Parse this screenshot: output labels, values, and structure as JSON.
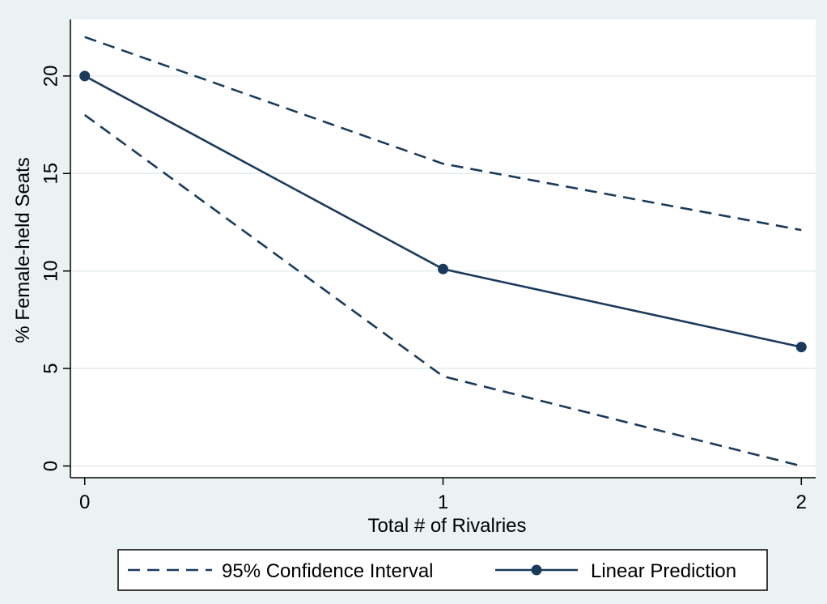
{
  "chart_data": {
    "type": "line",
    "title": "",
    "xlabel": "Total # of Rivalries",
    "ylabel": "% Female-held Seats",
    "x": [
      0,
      1,
      2
    ],
    "xticks": [
      0,
      1,
      2
    ],
    "yticks": [
      0,
      5,
      10,
      15,
      20
    ],
    "xlim": [
      -0.04,
      2.04
    ],
    "ylim": [
      -0.6,
      22.9
    ],
    "grid": true,
    "legend_position": "bottom",
    "series": [
      {
        "name": "Linear Prediction",
        "role": "prediction",
        "style": "solid",
        "markers": true,
        "values": [
          20.0,
          10.1,
          6.1
        ]
      },
      {
        "name": "95% Confidence Interval",
        "role": "ci_upper",
        "style": "dashed",
        "markers": false,
        "values": [
          22.0,
          15.5,
          12.1
        ]
      },
      {
        "name": "",
        "role": "ci_lower",
        "style": "dashed",
        "markers": false,
        "values": [
          18.0,
          4.6,
          0.0
        ]
      }
    ],
    "legend": [
      "95% Confidence Interval",
      "Linear Prediction"
    ],
    "colors": {
      "line": "#1a3a5c",
      "grid": "#e3ecee",
      "plot_bg": "#ffffff",
      "figure_bg": "#eaf2f3"
    }
  }
}
